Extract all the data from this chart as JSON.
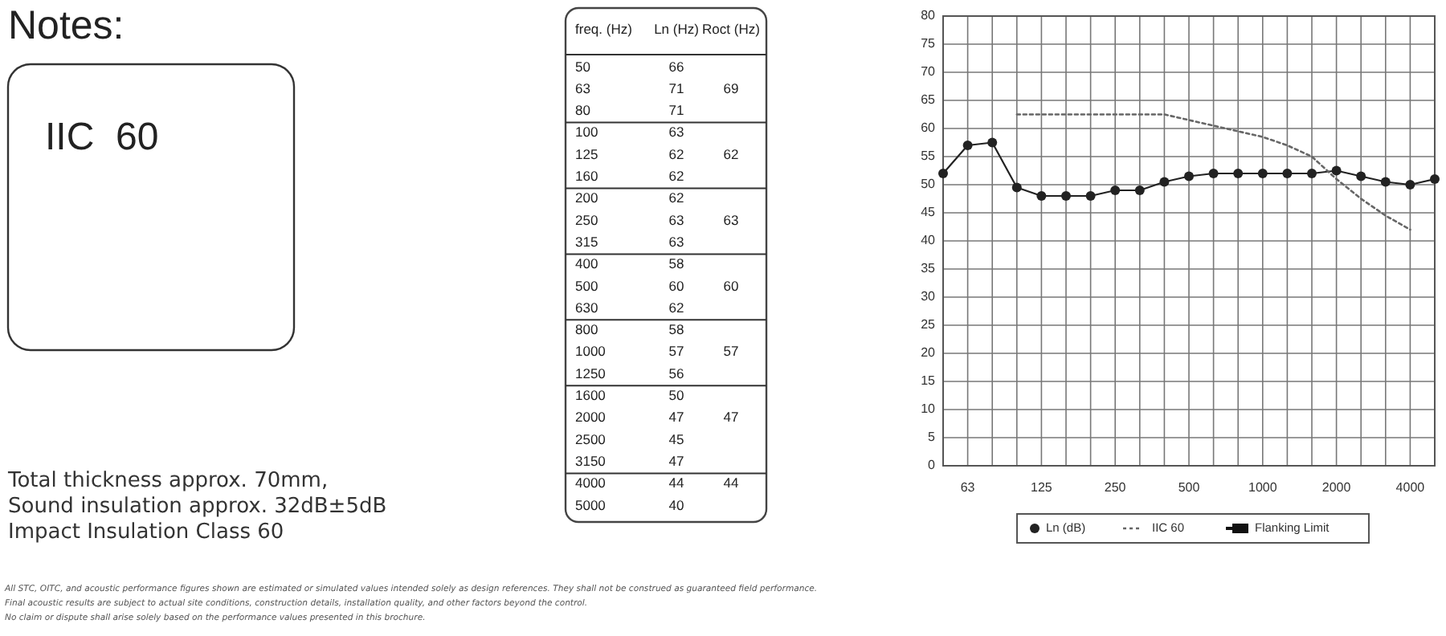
{
  "chart_data": [
    {
      "type": "other",
      "title": "Notes:",
      "annotations": [
        "IIC  60",
        "Total thickness approx. 70mm,",
        "Sound insulation approx. 32dB±5dB",
        "Impact Insulation Class 60",
        "All STC, OITC, and acoustic performance figures shown are estimated or simulated values intended solely as design references. They shall not be construed as guaranteed field performance.",
        "Final acoustic results are subject to actual site conditions, construction details, installation quality, and other factors beyond the control.",
        "No claim or dispute shall arise solely based on the performance values presented in this brochure."
      ]
    },
    {
      "type": "heatmap",
      "ylabel": "freq. (Hz)",
      "categories": [
        "Ln (Hz)",
        "Roct (Hz)"
      ],
      "y_categories": [
        "50",
        "63",
        "80",
        "100",
        "125",
        "160",
        "200",
        "250",
        "315",
        "400",
        "500",
        "630",
        "800",
        "1000",
        "1250",
        "1600",
        "2000",
        "2500",
        "3150",
        "4000",
        "5000"
      ],
      "cells": [
        [
          66,
          null
        ],
        [
          71,
          69
        ],
        [
          71,
          null
        ],
        [
          63,
          null
        ],
        [
          62,
          62
        ],
        [
          62,
          null
        ],
        [
          62,
          null
        ],
        [
          63,
          63
        ],
        [
          63,
          null
        ],
        [
          58,
          null
        ],
        [
          60,
          60
        ],
        [
          62,
          null
        ],
        [
          58,
          null
        ],
        [
          57,
          57
        ],
        [
          56,
          null
        ],
        [
          50,
          null
        ],
        [
          47,
          47
        ],
        [
          45,
          null
        ],
        [
          47,
          null
        ],
        [
          44,
          44
        ],
        [
          40,
          null
        ]
      ],
      "data_labels": true
    },
    {
      "type": "line",
      "categories": [
        null,
        "63",
        null,
        null,
        "125",
        null,
        null,
        "250",
        null,
        null,
        "500",
        null,
        null,
        "1000",
        null,
        null,
        "2000",
        null,
        null,
        "4000",
        null
      ],
      "ylim": [
        0,
        80
      ],
      "yticks": [
        0,
        5,
        10,
        15,
        20,
        25,
        30,
        35,
        40,
        45,
        50,
        55,
        60,
        65,
        70,
        75,
        80
      ],
      "grid": true,
      "legend": "bottom",
      "series": [
        {
          "name": "Ln (dB)",
          "color": "#222222",
          "marker": "circle",
          "line_style": "solid",
          "values": [
            52,
            57,
            57.5,
            49.5,
            48,
            48,
            48,
            49,
            49,
            50.5,
            51.5,
            52,
            52,
            52,
            52,
            52,
            52.5,
            51.5,
            50.5,
            50,
            51
          ]
        },
        {
          "name": "IIC 60",
          "color": "#666666",
          "marker": "none",
          "line_style": "dotted",
          "values": [
            null,
            null,
            null,
            62.5,
            62.5,
            62.5,
            62.5,
            62.5,
            62.5,
            62.5,
            61.5,
            60.5,
            59.5,
            58.5,
            57,
            55,
            51,
            47.5,
            44.5,
            42,
            null
          ]
        },
        {
          "name": "Flanking Limit",
          "color": "#111111",
          "marker": "square",
          "line_style": "solid",
          "values": [
            null,
            null,
            null,
            null,
            null,
            null,
            null,
            null,
            null,
            null,
            null,
            null,
            null,
            null,
            null,
            null,
            null,
            null,
            null,
            null,
            null
          ]
        }
      ]
    }
  ]
}
